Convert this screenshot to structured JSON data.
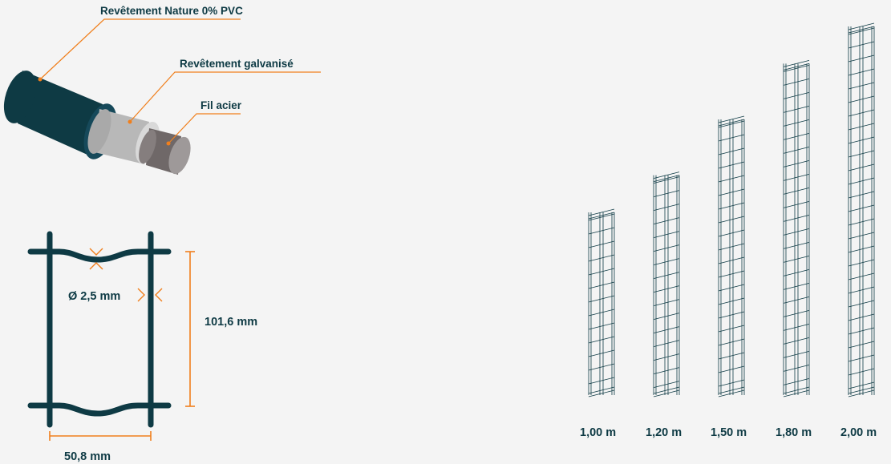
{
  "cable": {
    "labels": {
      "coating": "Revêtement Nature 0% PVC",
      "galvanized": "Revêtement galvanisé",
      "steel": "Fil acier"
    }
  },
  "mesh": {
    "diameter": "Ø 2,5 mm",
    "height": "101,6 mm",
    "width": "50,8 mm"
  },
  "panels": {
    "heights": [
      "1,00 m",
      "1,20 m",
      "1,50 m",
      "1,80 m",
      "2,00 m"
    ],
    "height_values_m": [
      1.0,
      1.2,
      1.5,
      1.8,
      2.0
    ]
  },
  "colors": {
    "dark_teal": "#0e3a44",
    "accent_orange": "#f07f1c",
    "galvanized_gray": "#b8b8b8",
    "steel_gray": "#6f6868",
    "background": "#f4f4f4"
  }
}
